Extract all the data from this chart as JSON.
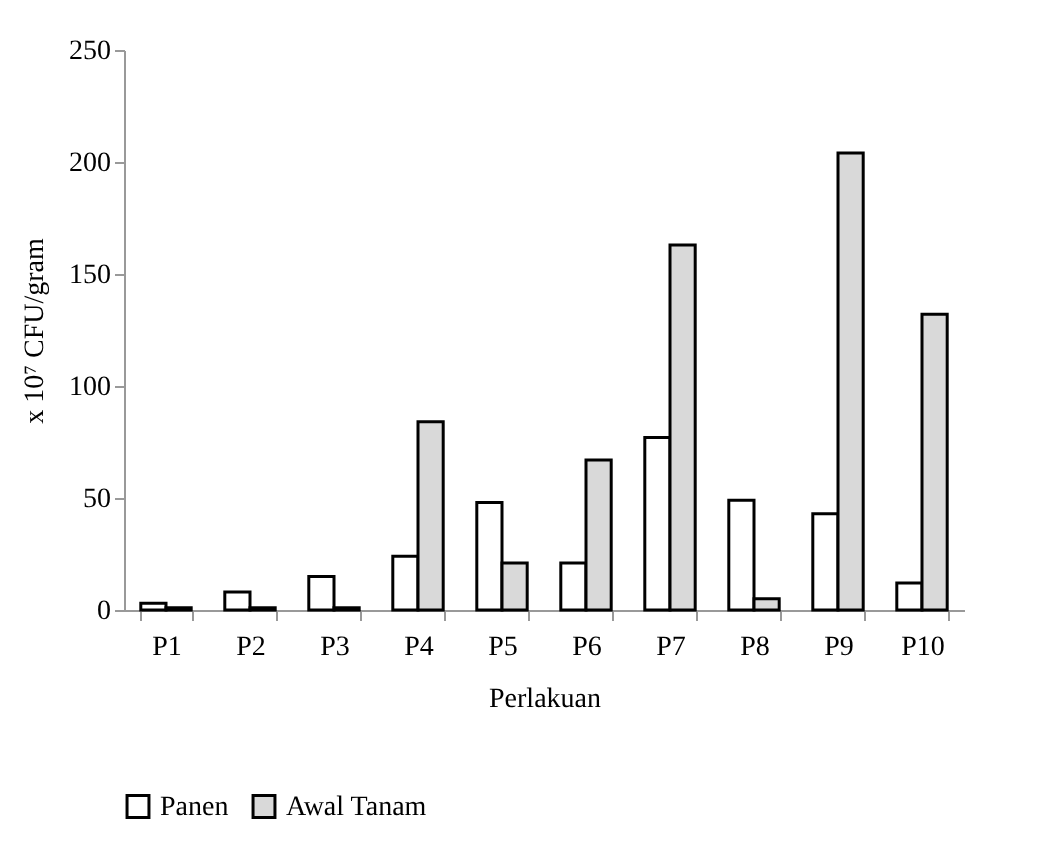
{
  "chart_data": {
    "type": "bar",
    "xlabel": "Perlakuan",
    "ylabel": "x 10⁷ CFU/gram",
    "categories": [
      "P1",
      "P2",
      "P3",
      "P4",
      "P5",
      "P6",
      "P7",
      "P8",
      "P9",
      "P10"
    ],
    "series": [
      {
        "name": "Panen",
        "color": "#ffffff",
        "values": [
          3,
          8,
          15,
          24,
          48,
          21,
          77,
          49,
          43,
          12
        ]
      },
      {
        "name": "Awal Tanam",
        "color": "#d9d9d9",
        "values": [
          1,
          1,
          1,
          84,
          21,
          67,
          163,
          5,
          204,
          132
        ]
      }
    ],
    "ylim": [
      0,
      250
    ],
    "yticks": [
      0,
      50,
      100,
      150,
      200,
      250
    ],
    "grid": false,
    "legend": "bottom"
  }
}
